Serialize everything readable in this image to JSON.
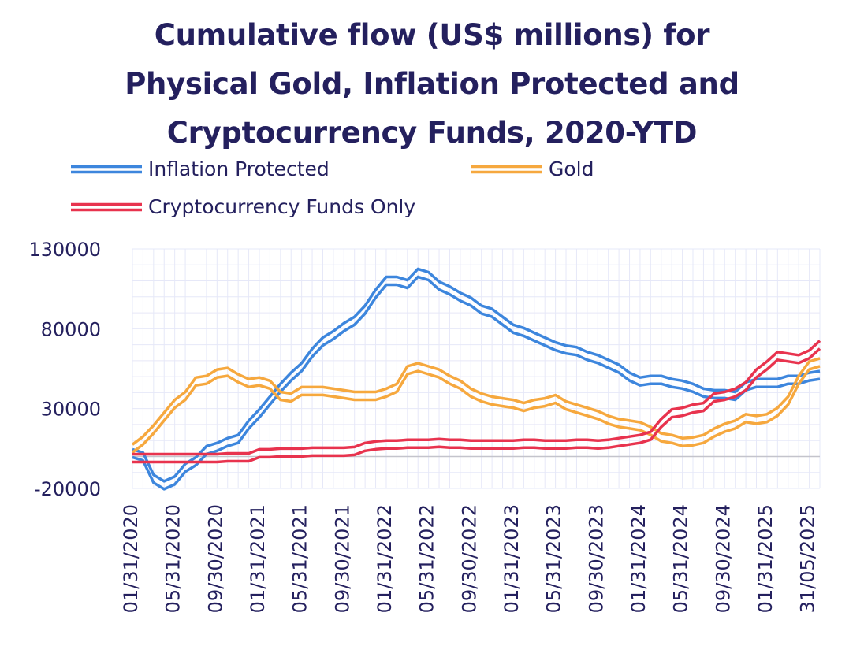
{
  "chart_data": {
    "type": "line",
    "title_lines": [
      "Cumulative flow (US$ millions) for",
      "Physical Gold, Inflation Protected and",
      "Cryptocurrency Funds, 2020-YTD"
    ],
    "xlabel": "",
    "ylabel": "",
    "ylim": [
      -20000,
      130000
    ],
    "yticks": [
      "130000",
      "80000",
      "30000",
      "-20000"
    ],
    "ytick_values": [
      130000,
      80000,
      30000,
      -20000
    ],
    "xtick_labels": [
      "01/31/2020",
      "05/31/2020",
      "09/30/2020",
      "01/31/2021",
      "05/31/2021",
      "09/30/2021",
      "01/31/2022",
      "05/31/2022",
      "09/30/2022",
      "01/31/2023",
      "05/31/2023",
      "09/30/2023",
      "01/31/2024",
      "05/31/2024",
      "09/30/2024",
      "01/31/2025",
      "31/05/2025"
    ],
    "grid": true,
    "legend_position": "top",
    "x": [
      "2020-01",
      "2020-02",
      "2020-03",
      "2020-04",
      "2020-05",
      "2020-06",
      "2020-07",
      "2020-08",
      "2020-09",
      "2020-10",
      "2020-11",
      "2020-12",
      "2021-01",
      "2021-02",
      "2021-03",
      "2021-04",
      "2021-05",
      "2021-06",
      "2021-07",
      "2021-08",
      "2021-09",
      "2021-10",
      "2021-11",
      "2021-12",
      "2022-01",
      "2022-02",
      "2022-03",
      "2022-04",
      "2022-05",
      "2022-06",
      "2022-07",
      "2022-08",
      "2022-09",
      "2022-10",
      "2022-11",
      "2022-12",
      "2023-01",
      "2023-02",
      "2023-03",
      "2023-04",
      "2023-05",
      "2023-06",
      "2023-07",
      "2023-08",
      "2023-09",
      "2023-10",
      "2023-11",
      "2023-12",
      "2024-01",
      "2024-02",
      "2024-03",
      "2024-04",
      "2024-05",
      "2024-06",
      "2024-07",
      "2024-08",
      "2024-09",
      "2024-10",
      "2024-11",
      "2024-12",
      "2025-01",
      "2025-02",
      "2025-03",
      "2025-04",
      "2025-05",
      "2025-06"
    ],
    "series": [
      {
        "name": "Inflation Protected",
        "color": "#3d86dd",
        "values": [
          2000,
          0,
          -14000,
          -18000,
          -15000,
          -7000,
          -3000,
          4000,
          6000,
          9000,
          11000,
          20000,
          27000,
          35000,
          43000,
          50000,
          56000,
          65000,
          72000,
          76000,
          81000,
          85000,
          92000,
          102000,
          110000,
          110000,
          108000,
          115000,
          113000,
          107000,
          104000,
          100000,
          97000,
          92000,
          90000,
          85000,
          80000,
          78000,
          75000,
          72000,
          69000,
          67000,
          66000,
          63000,
          61000,
          58000,
          55000,
          50000,
          47000,
          48000,
          48000,
          46000,
          45000,
          43000,
          40000,
          39000,
          39000,
          38000,
          44000,
          46000,
          46000,
          46000,
          48000,
          48000,
          50000,
          51000
        ]
      },
      {
        "name": "Gold",
        "color": "#f6a83e",
        "values": [
          5000,
          10000,
          17000,
          25000,
          33000,
          38000,
          47000,
          48000,
          52000,
          53000,
          49000,
          46000,
          47000,
          45000,
          38000,
          37000,
          41000,
          41000,
          41000,
          40000,
          39000,
          38000,
          38000,
          38000,
          40000,
          43000,
          54000,
          56000,
          54000,
          52000,
          48000,
          45000,
          40000,
          37000,
          35000,
          34000,
          33000,
          31000,
          33000,
          34000,
          36000,
          32000,
          30000,
          28000,
          26000,
          23000,
          21000,
          20000,
          19000,
          16000,
          12000,
          11000,
          9000,
          9500,
          11000,
          15000,
          18000,
          20000,
          24000,
          23000,
          24000,
          28000,
          35000,
          48000,
          57000,
          59000
        ]
      },
      {
        "name": "Cryptocurrency Funds Only",
        "color": "#e8334e",
        "values": [
          -1000,
          -1000,
          -1000,
          -1000,
          -1000,
          -1000,
          -1000,
          -1000,
          -1000,
          -500,
          -500,
          -500,
          2000,
          2000,
          2500,
          2500,
          2500,
          3000,
          3000,
          3000,
          3000,
          3500,
          6000,
          7000,
          7500,
          7500,
          8000,
          8000,
          8000,
          8500,
          8000,
          8000,
          7500,
          7500,
          7500,
          7500,
          7500,
          8000,
          8000,
          7500,
          7500,
          7500,
          8000,
          8000,
          7500,
          8000,
          9000,
          10000,
          11000,
          13000,
          21000,
          27000,
          28000,
          30000,
          31000,
          37000,
          38000,
          40000,
          44000,
          52000,
          57000,
          63000,
          62000,
          61000,
          64000,
          70000
        ]
      }
    ]
  }
}
